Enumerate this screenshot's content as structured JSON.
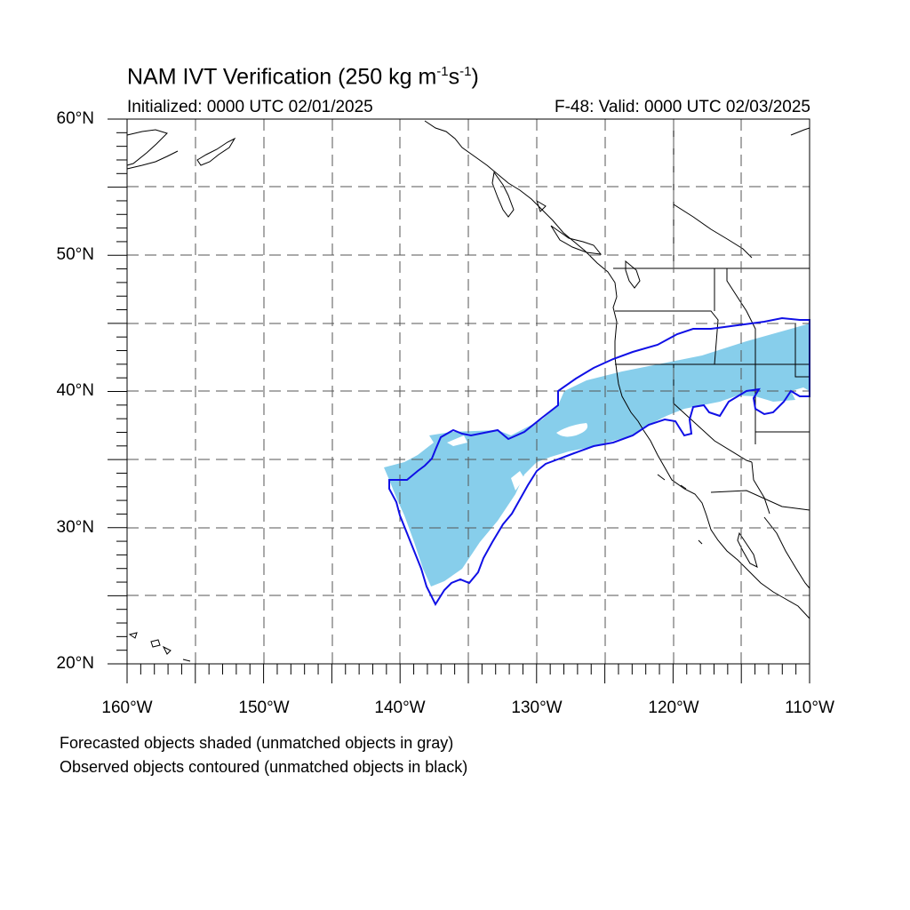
{
  "title": {
    "main": "NAM IVT Verification (250 kg m",
    "sup1": "-1",
    "mid": "s",
    "sup2": "-1",
    "end": ")"
  },
  "initialized": "Initialized: 0000 UTC 02/01/2025",
  "valid": "F-48: Valid: 0000 UTC 02/03/2025",
  "lat_labels": [
    "60°N",
    "50°N",
    "40°N",
    "30°N",
    "20°N"
  ],
  "lon_labels": [
    "160°W",
    "150°W",
    "140°W",
    "130°W",
    "120°W",
    "110°W"
  ],
  "notes": [
    "Forecasted objects shaded (unmatched objects in gray)",
    "Observed objects contoured (unmatched objects in black)"
  ],
  "map": {
    "lon_range": [
      -160,
      -110
    ],
    "lat_range": [
      20,
      60
    ],
    "grid_spacing_deg": 5,
    "forecast_color": "#87ceeb",
    "observed_color": "#1010e6"
  }
}
